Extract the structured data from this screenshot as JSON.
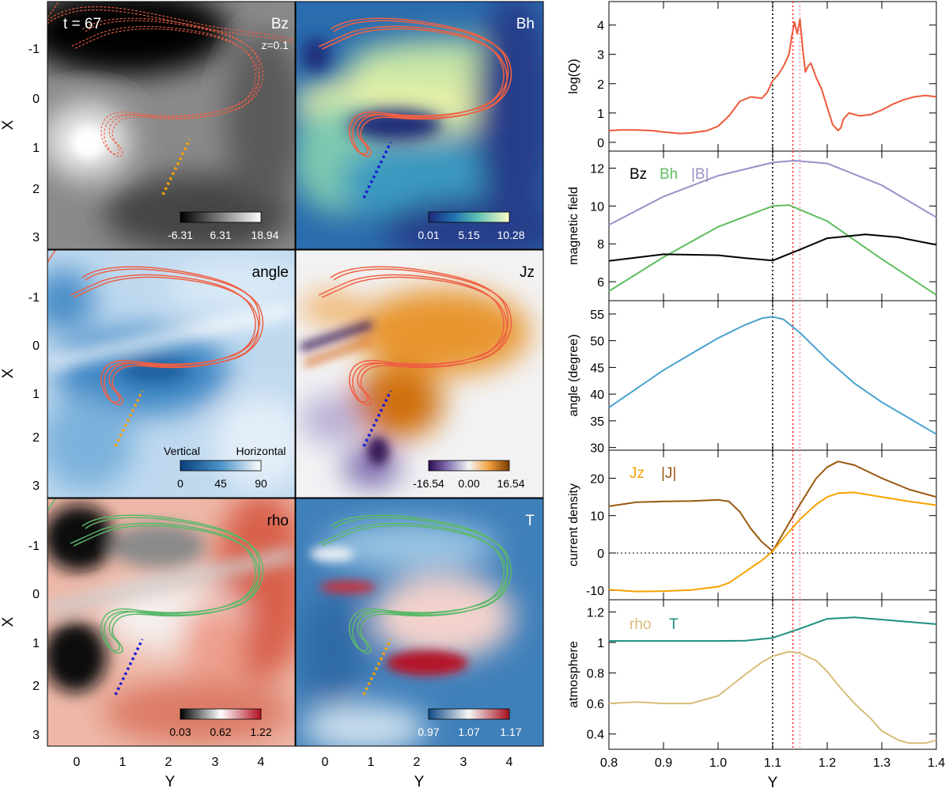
{
  "colors": {
    "contour_red": "#ee6044",
    "contour_green": "#5cb86a",
    "cut_orange": "#f7a200",
    "cut_blue": "#1818d8",
    "logQ": "#ee5a3c",
    "Bz": "#000000",
    "Bh": "#5fbe5f",
    "B": "#9c8fc8",
    "angle": "#4aa2d0",
    "Jz": "#f5a300",
    "J": "#9a5a10",
    "rho": "#d8bd78",
    "T": "#1f8f80",
    "vline_black": "#000000",
    "vline_red": "#ff2a2a",
    "vline_pink": "#f4a0a0"
  },
  "panels": {
    "time_label": "t = 67",
    "bz": {
      "title": "Bz",
      "subtitle": "z=0.1",
      "cbar_ticks": [
        "-6.31",
        "6.31",
        "18.94"
      ]
    },
    "bh": {
      "title": "Bh",
      "cbar_ticks": [
        "0.01",
        "5.15",
        "10.28"
      ]
    },
    "angle": {
      "title": "angle",
      "cbar_ticks": [
        "0",
        "45",
        "90"
      ],
      "cbar_left": "Vertical",
      "cbar_right": "Horizontal"
    },
    "jz": {
      "title": "Jz",
      "cbar_ticks": [
        "-16.54",
        "0.00",
        "16.54"
      ]
    },
    "rho": {
      "title": "rho",
      "cbar_ticks": [
        "0.03",
        "0.62",
        "1.22"
      ]
    },
    "t": {
      "title": "T",
      "cbar_ticks": [
        "0.97",
        "1.07",
        "1.17"
      ]
    },
    "xlabel": "Y",
    "ylabel": "X",
    "xticks": [
      "0",
      "1",
      "2",
      "3",
      "4"
    ],
    "yticks": [
      "-1",
      "0",
      "1",
      "2",
      "3"
    ]
  },
  "chart_data": {
    "type": "line",
    "xlabel": "Y",
    "xlim": [
      0.8,
      1.4
    ],
    "xticks": [
      "0.8",
      "0.9",
      "1.0",
      "1.1",
      "1.2",
      "1.3",
      "1.4"
    ],
    "vlines": [
      1.1,
      1.137,
      1.15
    ],
    "panels": [
      {
        "ylabel": "log(Q)",
        "ylim": [
          -0.3,
          4.8
        ],
        "yticks": [
          0,
          1,
          2,
          3,
          4
        ],
        "legend": [],
        "series": [
          {
            "key": "logQ",
            "x": [
              0.8,
              0.82,
              0.85,
              0.88,
              0.9,
              0.93,
              0.95,
              0.98,
              1.0,
              1.02,
              1.04,
              1.06,
              1.08,
              1.09,
              1.1,
              1.11,
              1.12,
              1.13,
              1.135,
              1.14,
              1.145,
              1.15,
              1.155,
              1.16,
              1.165,
              1.17,
              1.18,
              1.19,
              1.2,
              1.21,
              1.22,
              1.225,
              1.23,
              1.24,
              1.26,
              1.28,
              1.3,
              1.32,
              1.34,
              1.36,
              1.38,
              1.4
            ],
            "y": [
              0.4,
              0.42,
              0.42,
              0.4,
              0.35,
              0.3,
              0.32,
              0.4,
              0.55,
              0.9,
              1.4,
              1.55,
              1.5,
              1.7,
              2.1,
              2.3,
              2.6,
              3.0,
              3.6,
              4.1,
              3.7,
              4.2,
              3.2,
              2.4,
              2.6,
              2.7,
              2.2,
              1.8,
              1.2,
              0.6,
              0.4,
              0.5,
              0.8,
              1.0,
              0.9,
              0.95,
              1.1,
              1.3,
              1.45,
              1.55,
              1.6,
              1.55
            ]
          }
        ]
      },
      {
        "ylabel": "magnetic field",
        "ylim": [
          5,
          12.9
        ],
        "yticks": [
          6,
          8,
          10,
          12
        ],
        "legend": [
          "Bz",
          "Bh",
          "|B|"
        ],
        "series": [
          {
            "key": "B",
            "x": [
              0.8,
              0.9,
              1.0,
              1.1,
              1.14,
              1.2,
              1.3,
              1.4
            ],
            "y": [
              9.0,
              10.5,
              11.6,
              12.3,
              12.4,
              12.25,
              11.1,
              9.4
            ]
          },
          {
            "key": "Bh",
            "x": [
              0.8,
              0.9,
              1.0,
              1.1,
              1.13,
              1.2,
              1.3,
              1.4
            ],
            "y": [
              5.5,
              7.3,
              8.9,
              10.0,
              10.05,
              9.2,
              7.2,
              5.3
            ]
          },
          {
            "key": "Bz",
            "x": [
              0.8,
              0.9,
              1.0,
              1.05,
              1.1,
              1.15,
              1.2,
              1.27,
              1.33,
              1.4
            ],
            "y": [
              7.1,
              7.45,
              7.4,
              7.25,
              7.12,
              7.7,
              8.3,
              8.5,
              8.35,
              7.95
            ]
          }
        ]
      },
      {
        "ylabel": "angle (degree)",
        "ylim": [
          29.5,
          57.5
        ],
        "yticks": [
          30,
          35,
          40,
          45,
          50,
          55
        ],
        "legend": [],
        "series": [
          {
            "key": "angle",
            "x": [
              0.8,
              0.85,
              0.9,
              0.95,
              1.0,
              1.05,
              1.08,
              1.1,
              1.12,
              1.15,
              1.2,
              1.25,
              1.3,
              1.35,
              1.4
            ],
            "y": [
              37.5,
              41.0,
              44.5,
              47.5,
              50.5,
              53.0,
              54.2,
              54.5,
              54.0,
              51.5,
              46.5,
              42.0,
              38.5,
              35.5,
              32.5
            ]
          }
        ]
      },
      {
        "ylabel": "current density",
        "ylim": [
          -12.5,
          27.5
        ],
        "yticks": [
          -10,
          0,
          10,
          20
        ],
        "legend": [
          "Jz",
          "|J|"
        ],
        "zero_line": true,
        "series": [
          {
            "key": "J",
            "x": [
              0.8,
              0.85,
              0.9,
              0.95,
              1.0,
              1.02,
              1.04,
              1.06,
              1.08,
              1.1,
              1.12,
              1.15,
              1.18,
              1.2,
              1.22,
              1.25,
              1.3,
              1.35,
              1.4
            ],
            "y": [
              12.5,
              13.6,
              13.8,
              13.9,
              14.2,
              13.8,
              11.0,
              6.5,
              3.0,
              0.5,
              5.5,
              13.0,
              20.0,
              23.0,
              24.5,
              23.5,
              20.0,
              17.0,
              15.0
            ]
          },
          {
            "key": "Jz",
            "x": [
              0.8,
              0.85,
              0.9,
              0.95,
              1.0,
              1.02,
              1.04,
              1.06,
              1.08,
              1.1,
              1.12,
              1.15,
              1.18,
              1.2,
              1.22,
              1.25,
              1.3,
              1.35,
              1.4
            ],
            "y": [
              -9.8,
              -10.3,
              -10.2,
              -9.9,
              -9.0,
              -8.0,
              -6.0,
              -4.0,
              -2.0,
              0.5,
              4.0,
              9.0,
              13.0,
              15.0,
              16.0,
              16.2,
              15.0,
              13.8,
              12.8
            ]
          }
        ]
      },
      {
        "ylabel": "atmosphere",
        "ylim": [
          0.3,
          1.28
        ],
        "yticks": [
          0.4,
          0.6,
          0.8,
          1.0,
          1.2
        ],
        "legend": [
          "rho",
          "T"
        ],
        "series": [
          {
            "key": "T",
            "x": [
              0.8,
              0.9,
              1.0,
              1.05,
              1.1,
              1.15,
              1.2,
              1.25,
              1.3,
              1.35,
              1.4
            ],
            "y": [
              1.01,
              1.01,
              1.01,
              1.012,
              1.03,
              1.09,
              1.155,
              1.165,
              1.15,
              1.135,
              1.12
            ]
          },
          {
            "key": "rho",
            "x": [
              0.8,
              0.85,
              0.9,
              0.95,
              1.0,
              1.05,
              1.08,
              1.1,
              1.13,
              1.15,
              1.18,
              1.2,
              1.22,
              1.25,
              1.28,
              1.3,
              1.33,
              1.35,
              1.38,
              1.4
            ],
            "y": [
              0.6,
              0.61,
              0.6,
              0.6,
              0.65,
              0.79,
              0.87,
              0.91,
              0.94,
              0.93,
              0.88,
              0.81,
              0.72,
              0.6,
              0.5,
              0.42,
              0.36,
              0.34,
              0.34,
              0.36
            ]
          }
        ]
      }
    ]
  }
}
